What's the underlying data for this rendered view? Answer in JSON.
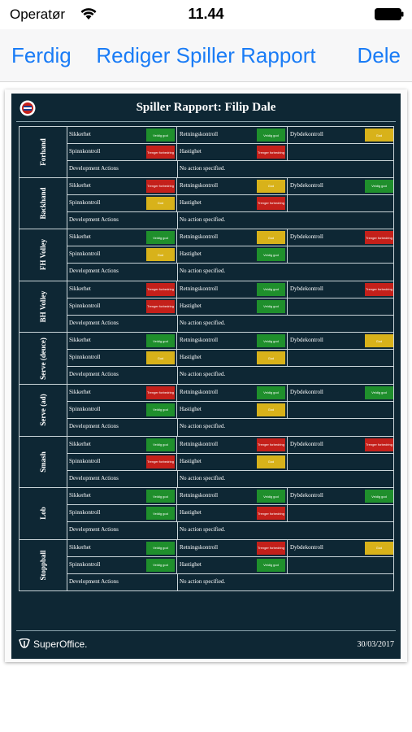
{
  "status": {
    "carrier": "Operatør",
    "time": "11.44"
  },
  "nav": {
    "left": "Ferdig",
    "title": "Rediger Spiller Rapport",
    "right": "Dele"
  },
  "report": {
    "title": "Spiller Rapport: Filip Dale",
    "date": "30/03/2017",
    "logo": "SuperOffice.",
    "dev_label": "Development Actions",
    "dev_text": "No action specified.",
    "labels": {
      "sikkerhet": "Sikkerhet",
      "retning": "Retningskontroll",
      "dybde": "Dybdekontroll",
      "spinn": "Spinnkontroll",
      "hastighet": "Hastighet"
    },
    "rating_text": {
      "green": "Veldig god",
      "yellow": "God",
      "red": "Trenger forbedring"
    },
    "colors": {
      "green": "#1f8f2c",
      "yellow": "#d8b21a",
      "red": "#c4201a"
    },
    "groups": [
      {
        "name": "Forhand",
        "r": [
          "green",
          "green",
          "yellow",
          "red",
          "red"
        ]
      },
      {
        "name": "Backhand",
        "r": [
          "red",
          "yellow",
          "green",
          "yellow",
          "red"
        ]
      },
      {
        "name": "FH Volley",
        "r": [
          "green",
          "yellow",
          "red",
          "yellow",
          "green"
        ]
      },
      {
        "name": "BH Volley",
        "r": [
          "red",
          "green",
          "red",
          "red",
          "green"
        ]
      },
      {
        "name": "Serve (deuce)",
        "r": [
          "green",
          "green",
          "yellow",
          "yellow",
          "yellow"
        ]
      },
      {
        "name": "Serve (ad)",
        "r": [
          "red",
          "green",
          "green",
          "green",
          "yellow"
        ]
      },
      {
        "name": "Smash",
        "r": [
          "green",
          "red",
          "red",
          "red",
          "yellow"
        ]
      },
      {
        "name": "Lob",
        "r": [
          "green",
          "green",
          "green",
          "green",
          "red"
        ]
      },
      {
        "name": "Stoppball",
        "r": [
          "green",
          "red",
          "yellow",
          "green",
          "green"
        ]
      }
    ]
  }
}
